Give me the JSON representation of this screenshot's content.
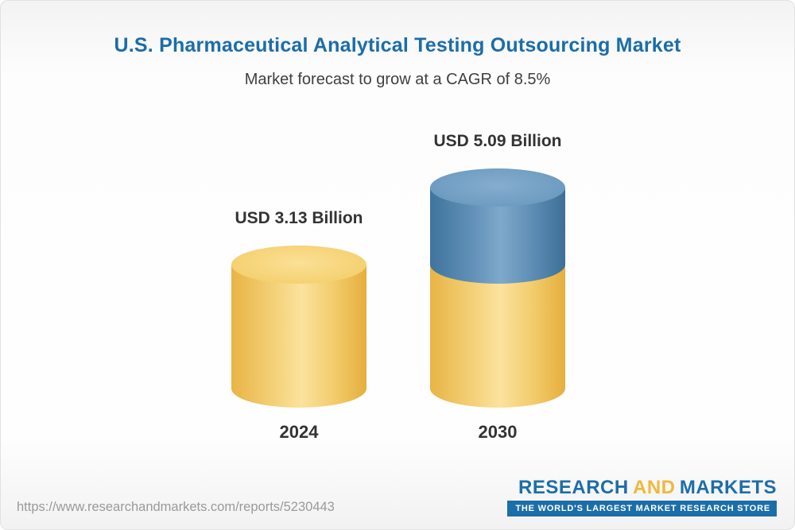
{
  "page": {
    "title": "U.S. Pharmaceutical Analytical Testing Outsourcing Market",
    "subtitle": "Market forecast to grow at a CAGR of 8.5%"
  },
  "chart_data": {
    "type": "bar",
    "subtype": "3d-cylinder",
    "title": "U.S. Pharmaceutical Analytical Testing Outsourcing Market",
    "subtitle": "Market forecast to grow at a CAGR of 8.5%",
    "cagr_percent": 8.5,
    "unit": "USD Billion",
    "categories": [
      "2024",
      "2030"
    ],
    "values": [
      3.13,
      5.09
    ],
    "value_labels": [
      "USD 3.13 Billion",
      "USD 5.09 Billion"
    ],
    "series": [
      {
        "name": "base",
        "color": "#F2CB66",
        "values": [
          3.13,
          3.13
        ]
      },
      {
        "name": "growth",
        "color": "#5D8EB7",
        "values": [
          0,
          1.96
        ]
      }
    ],
    "legend": "none",
    "grid": false,
    "notes": "2030 cylinder is stacked: yellow base equal to 2024 value with blue growth segment on top reaching 5.09"
  },
  "footer": {
    "url": "https://www.researchandmarkets.com/reports/5230443",
    "logo_research": "RESEARCH",
    "logo_and": "AND",
    "logo_markets": "MARKETS",
    "tagline": "THE WORLD'S LARGEST MARKET RESEARCH STORE"
  },
  "colors": {
    "title": "#1B6DA8",
    "subtitle": "#3F3F3F",
    "labels": "#333333",
    "url": "#9A9A9A",
    "logo_blue": "#1C6EA9",
    "logo_yellow": "#F0B83D",
    "bar_yellow": "#F2CB66",
    "bar_blue": "#5D8EB7"
  }
}
